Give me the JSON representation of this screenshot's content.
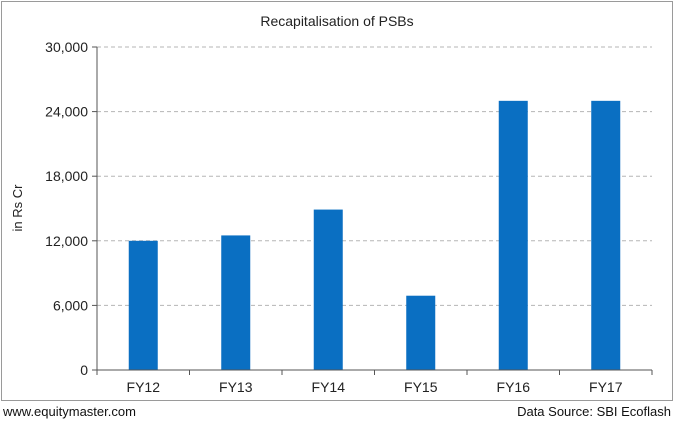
{
  "footer": {
    "website": "www.equitymaster.com",
    "source": "Data Source: SBI Ecoflash"
  },
  "colors": {
    "bar": "#0a6fc2",
    "grid": "#b5b5b5",
    "axis": "#555555",
    "border": "#9a9a9a"
  },
  "chart_data": {
    "type": "bar",
    "title": "Recapitalisation of PSBs",
    "xlabel": "",
    "ylabel": "in Rs Cr",
    "categories": [
      "FY12",
      "FY13",
      "FY14",
      "FY15",
      "FY16",
      "FY17"
    ],
    "values": [
      12000,
      12500,
      14900,
      6900,
      25000,
      25000
    ],
    "ylim": [
      0,
      30000
    ],
    "yticks": [
      0,
      6000,
      12000,
      18000,
      24000,
      30000
    ],
    "ytick_labels": [
      "0",
      "6,000",
      "12,000",
      "18,000",
      "24,000",
      "30,000"
    ],
    "grid": true,
    "grid_style": "dashed",
    "legend": "none"
  }
}
